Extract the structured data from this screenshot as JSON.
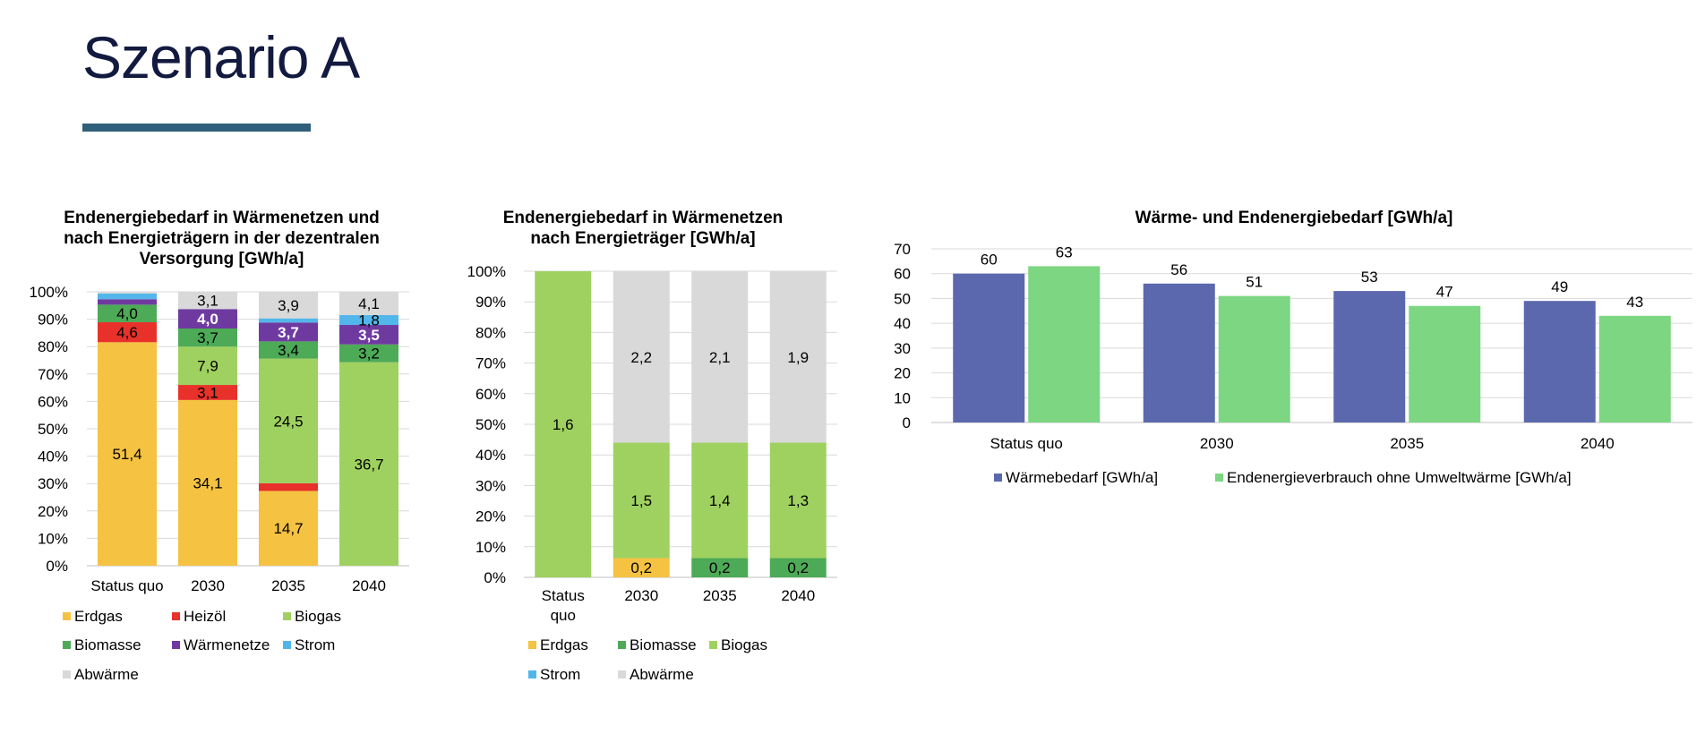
{
  "slide": {
    "title": "Szenario A"
  },
  "colors": {
    "erdgas": "#f5c242",
    "heizoel": "#e8312a",
    "biogas": "#9fd160",
    "biomasse": "#4daa57",
    "waermenetze": "#6f3aa0",
    "strom": "#53b6ea",
    "abwaerme": "#d9d9d9",
    "waermebedarf": "#5c68ad",
    "endenergie": "#7dd682"
  },
  "chart_data": [
    {
      "type": "bar",
      "stacked": "percent",
      "title": "Endenergiebedarf in Wärmenetzen und nach Energieträgern in der dezentralen Versorgung [GWh/a]",
      "categories": [
        "Status quo",
        "2030",
        "2035",
        "2040"
      ],
      "yticks": [
        "0%",
        "10%",
        "20%",
        "30%",
        "40%",
        "50%",
        "60%",
        "70%",
        "80%",
        "90%",
        "100%"
      ],
      "ylim": [
        0,
        100
      ],
      "grid": true,
      "legend": "bottom",
      "series": [
        {
          "name": "Erdgas",
          "color": "erdgas",
          "values": [
            51.4,
            34.1,
            14.7,
            0
          ],
          "shares": [
            81.6,
            60.5,
            27.3,
            0
          ],
          "labels": [
            "51,4",
            "34,1",
            "14,7",
            ""
          ],
          "label_dark": true
        },
        {
          "name": "Heizöl",
          "color": "heizoel",
          "values": [
            4.6,
            3.1,
            1.5,
            0
          ],
          "shares": [
            7.3,
            5.5,
            2.8,
            0
          ],
          "labels": [
            "4,6",
            "3,1",
            "",
            ""
          ],
          "label_dark": true
        },
        {
          "name": "Biogas",
          "color": "biogas",
          "values": [
            0,
            7.9,
            24.5,
            36.7
          ],
          "shares": [
            0,
            14.0,
            45.5,
            74.3
          ],
          "labels": [
            "",
            "7,9",
            "24,5",
            "36,7"
          ],
          "label_dark": true
        },
        {
          "name": "Biomasse",
          "color": "biomasse",
          "values": [
            4.0,
            3.7,
            3.4,
            3.2
          ],
          "shares": [
            6.4,
            6.6,
            6.3,
            6.5
          ],
          "labels": [
            "4,0",
            "3,7",
            "3,4",
            "3,2"
          ],
          "label_dark": true
        },
        {
          "name": "Wärmenetze",
          "color": "waermenetze",
          "values": [
            1.2,
            4.0,
            3.7,
            3.5
          ],
          "shares": [
            2.0,
            7.1,
            6.9,
            7.1
          ],
          "labels": [
            "",
            "4,0",
            "3,7",
            "3,5"
          ],
          "label_dark": false
        },
        {
          "name": "Strom",
          "color": "strom",
          "values": [
            1.3,
            0,
            0.8,
            1.8
          ],
          "shares": [
            2.1,
            0,
            1.5,
            3.6
          ],
          "labels": [
            "",
            "",
            "",
            "1,8"
          ],
          "label_dark": true
        },
        {
          "name": "Abwärme",
          "color": "abwaerme",
          "values": [
            0.4,
            3.1,
            3.9,
            4.1
          ],
          "shares": [
            0.6,
            6.3,
            9.7,
            8.5
          ],
          "labels": [
            "",
            "3,1",
            "3,9",
            "4,1"
          ],
          "label_dark": true
        }
      ],
      "legend_rows": [
        [
          "Erdgas",
          "Heizöl",
          "Biogas"
        ],
        [
          "Biomasse",
          "Wärmenetze",
          "Strom"
        ],
        [
          "Abwärme"
        ]
      ]
    },
    {
      "type": "bar",
      "stacked": "percent",
      "title": "Endenergiebedarf in Wärmenetzen nach Energieträger [GWh/a]",
      "categories": [
        "Status quo",
        "2030",
        "2035",
        "2040"
      ],
      "yticks": [
        "0%",
        "10%",
        "20%",
        "30%",
        "40%",
        "50%",
        "60%",
        "70%",
        "80%",
        "90%",
        "100%"
      ],
      "ylim": [
        0,
        100
      ],
      "grid": true,
      "legend": "bottom",
      "series": [
        {
          "name": "Erdgas",
          "color": "erdgas",
          "values": [
            0,
            0.2,
            0,
            0
          ],
          "shares": [
            0,
            6.3,
            0,
            0
          ],
          "labels": [
            "",
            "0,2",
            "",
            ""
          ],
          "label_dark": true
        },
        {
          "name": "Biomasse",
          "color": "biomasse",
          "values": [
            0,
            0,
            0.2,
            0.2
          ],
          "shares": [
            0,
            0,
            6.3,
            6.3
          ],
          "labels": [
            "",
            "",
            "0,2",
            "0,2"
          ],
          "label_dark": true
        },
        {
          "name": "Biogas",
          "color": "biogas",
          "values": [
            1.6,
            1.5,
            1.4,
            1.3
          ],
          "shares": [
            100,
            37.7,
            37.7,
            37.7
          ],
          "labels": [
            "1,6",
            "1,5",
            "1,4",
            "1,3"
          ],
          "label_dark": true
        },
        {
          "name": "Strom",
          "color": "strom",
          "values": [
            0,
            0,
            0,
            0
          ],
          "shares": [
            0,
            0,
            0,
            0
          ],
          "labels": [
            "",
            "",
            "",
            ""
          ],
          "label_dark": true
        },
        {
          "name": "Abwärme",
          "color": "abwaerme",
          "values": [
            0,
            2.2,
            2.1,
            1.9
          ],
          "shares": [
            0,
            56.0,
            56.0,
            56.0
          ],
          "labels": [
            "",
            "2,2",
            "2,1",
            "1,9"
          ],
          "label_dark": true
        }
      ],
      "legend_rows": [
        [
          "Erdgas",
          "Biomasse",
          "Biogas"
        ],
        [
          "Strom",
          "Abwärme"
        ]
      ]
    },
    {
      "type": "bar",
      "title": "Wärme- und Endenergiebedarf [GWh/a]",
      "categories": [
        "Status quo",
        "2030",
        "2035",
        "2040"
      ],
      "yticks": [
        "0",
        "10",
        "20",
        "30",
        "40",
        "50",
        "60",
        "70"
      ],
      "ylim": [
        0,
        70
      ],
      "grid": true,
      "legend": "bottom",
      "series": [
        {
          "name": "Wärmebedarf [GWh/a]",
          "color": "waermebedarf",
          "values": [
            60,
            56,
            53,
            49
          ],
          "labels": [
            "60",
            "56",
            "53",
            "49"
          ]
        },
        {
          "name": "Endenergieverbrauch ohne Umweltwärme [GWh/a]",
          "color": "endenergie",
          "values": [
            63,
            51,
            47,
            43
          ],
          "labels": [
            "63",
            "51",
            "47",
            "43"
          ]
        }
      ]
    }
  ]
}
